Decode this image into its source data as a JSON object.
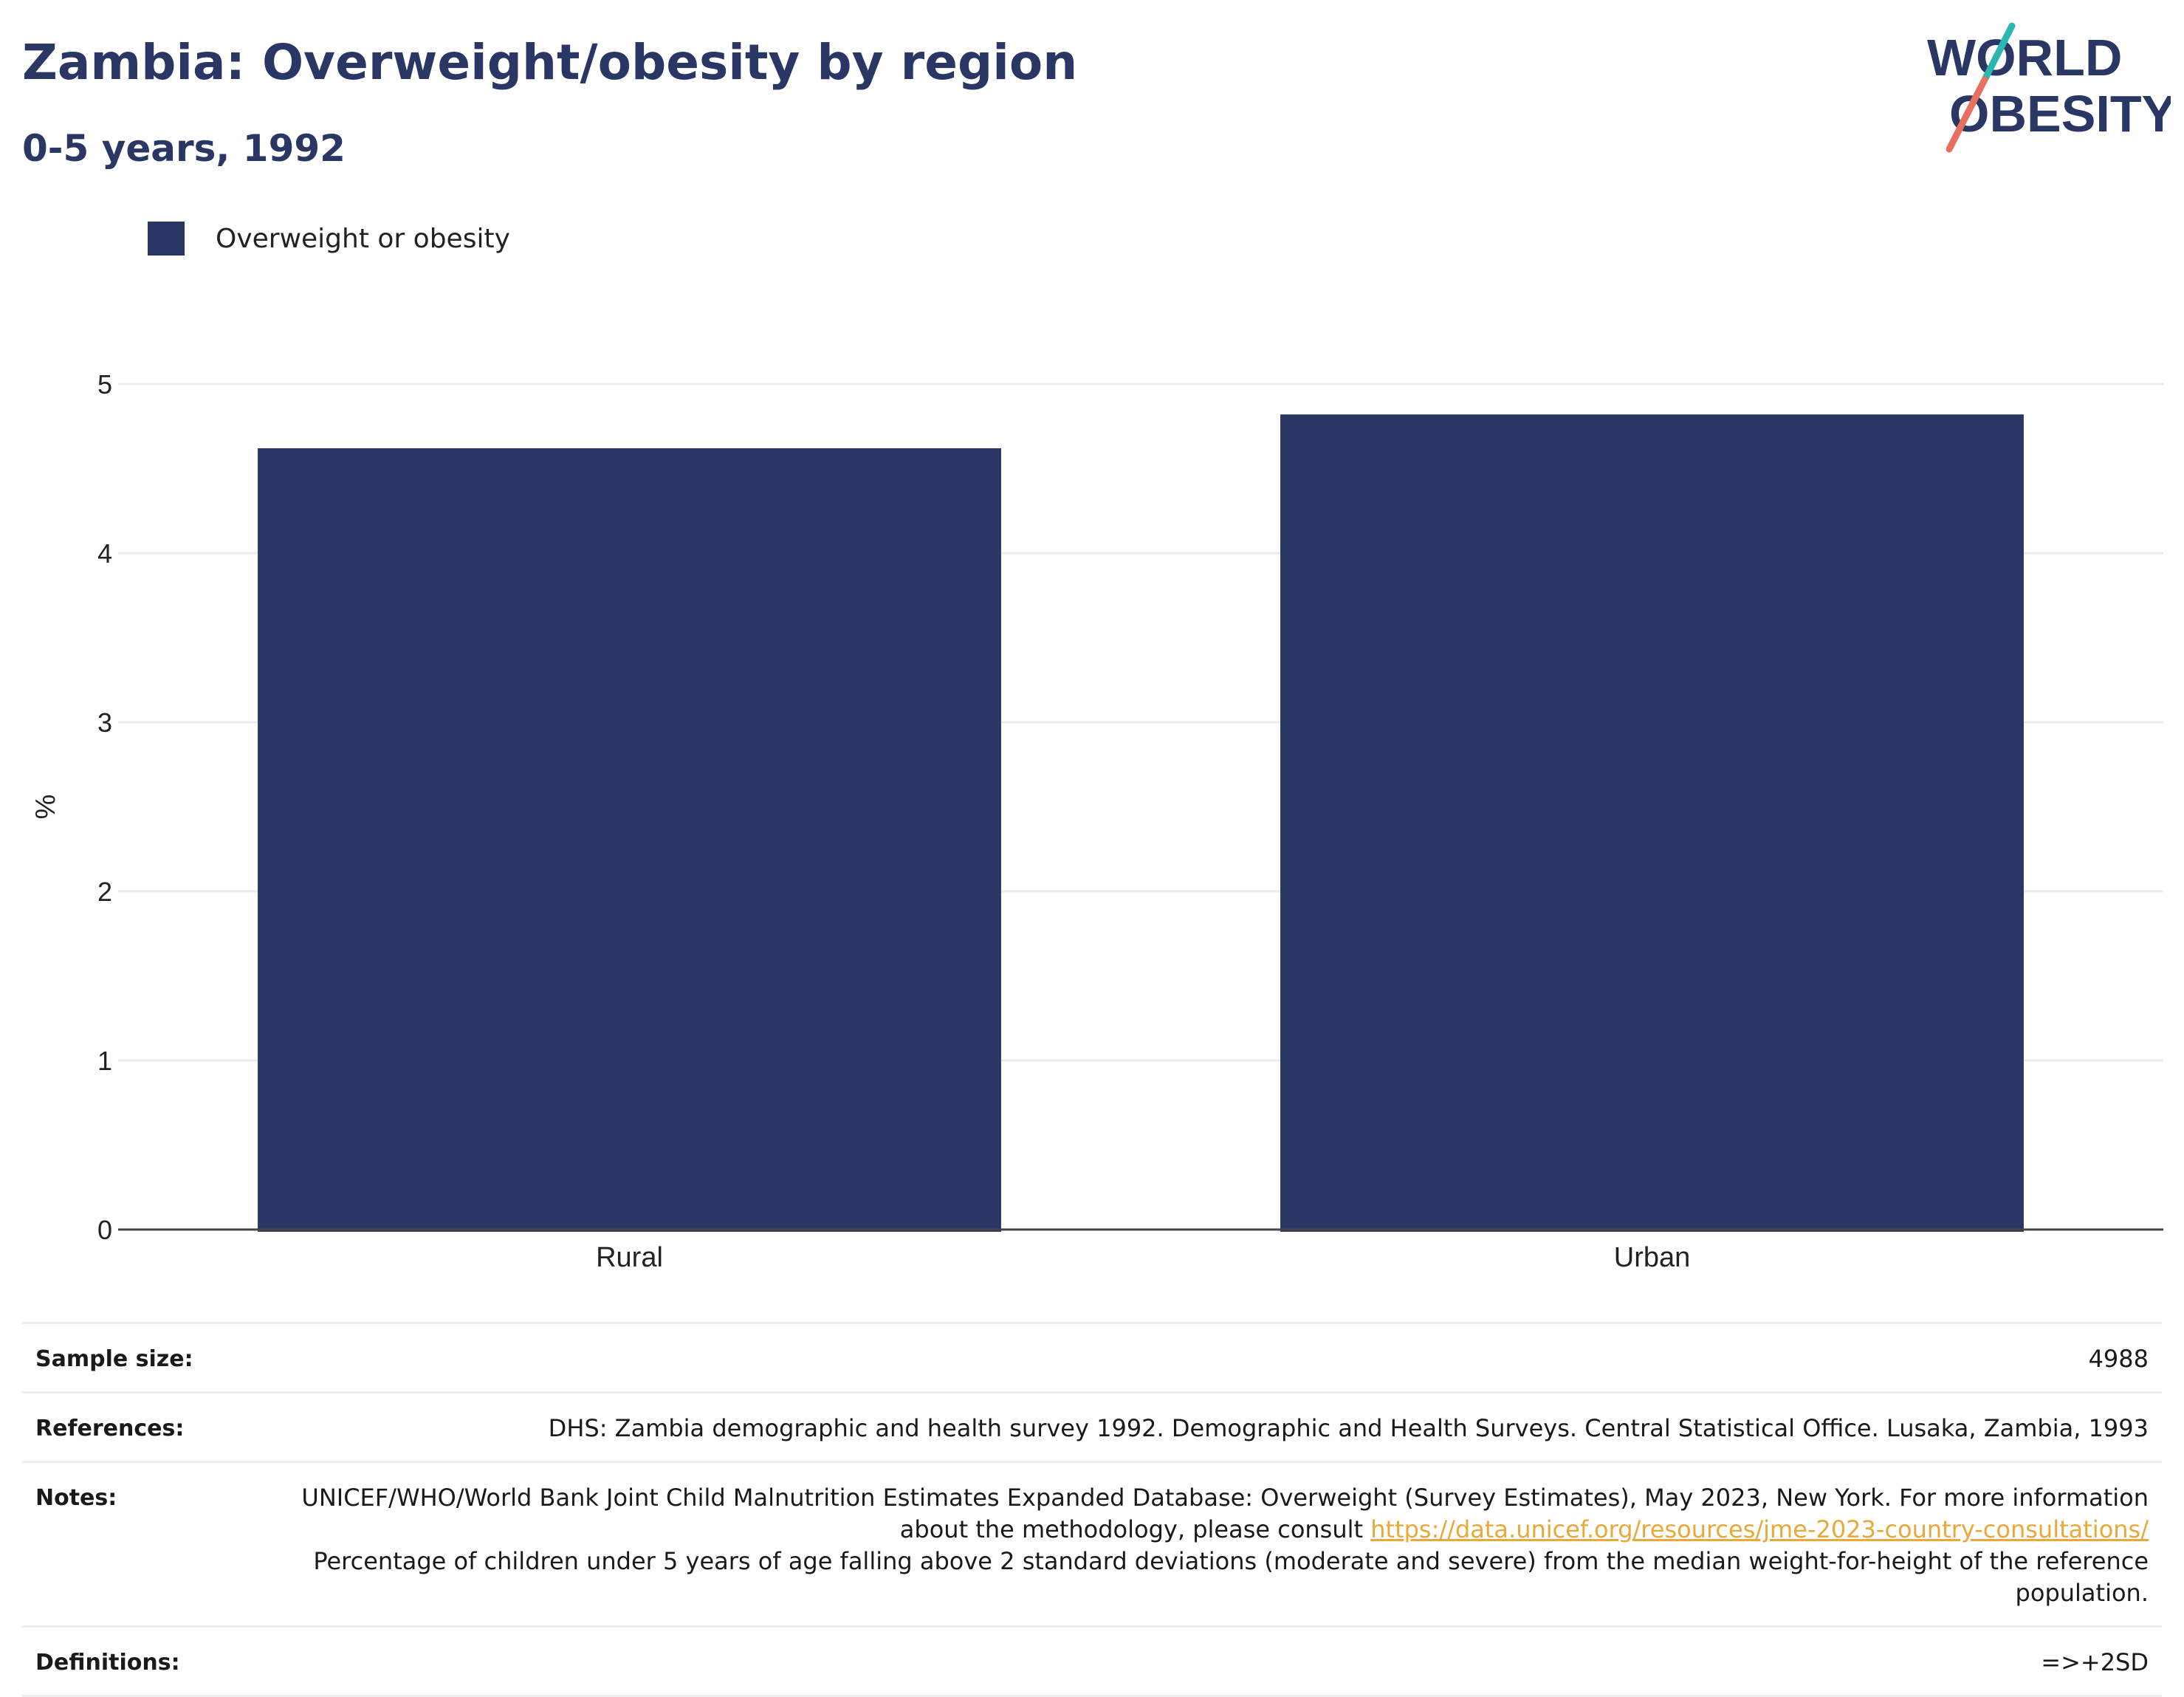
{
  "header": {
    "title": "Zambia: Overweight/obesity by region",
    "subtitle": "0-5 years, 1992"
  },
  "logo": {
    "line1": "WORLD",
    "line2": "OBESITY",
    "text_color": "#2a3663",
    "slash_top_color": "#2bb7b0",
    "slash_bottom_color": "#e8705f"
  },
  "legend": {
    "label": "Overweight or obesity",
    "color": "#2a3663"
  },
  "chart_data": {
    "type": "bar",
    "categories": [
      "Rural",
      "Urban"
    ],
    "series": [
      {
        "name": "Overweight or obesity",
        "values": [
          4.62,
          4.82
        ]
      }
    ],
    "ylabel": "%",
    "ylim": [
      0,
      5
    ],
    "yticks": [
      "0",
      "1",
      "2",
      "3",
      "4",
      "5"
    ],
    "grid": true,
    "legend_position": "top-left",
    "bar_color": "#2a3663"
  },
  "info": {
    "sample_size_label": "Sample size:",
    "sample_size_value": "4988",
    "references_label": "References:",
    "references_value": "DHS: Zambia demographic and health survey 1992. Demographic and Health Surveys. Central Statistical Office. Lusaka, Zambia, 1993",
    "notes_label": "Notes:",
    "notes_text1": "UNICEF/WHO/World Bank Joint Child Malnutrition Estimates Expanded Database: Overweight (Survey Estimates), May 2023, New York. For more information about the methodology, please consult ",
    "notes_link": "https://data.unicef.org/resources/jme-2023-country-consultations/",
    "notes_text2": "Percentage of children under 5 years of age falling above 2 standard deviations (moderate and severe) from the median weight-for-height of the reference population.",
    "definitions_label": "Definitions:",
    "definitions_value": "=>+2SD"
  }
}
